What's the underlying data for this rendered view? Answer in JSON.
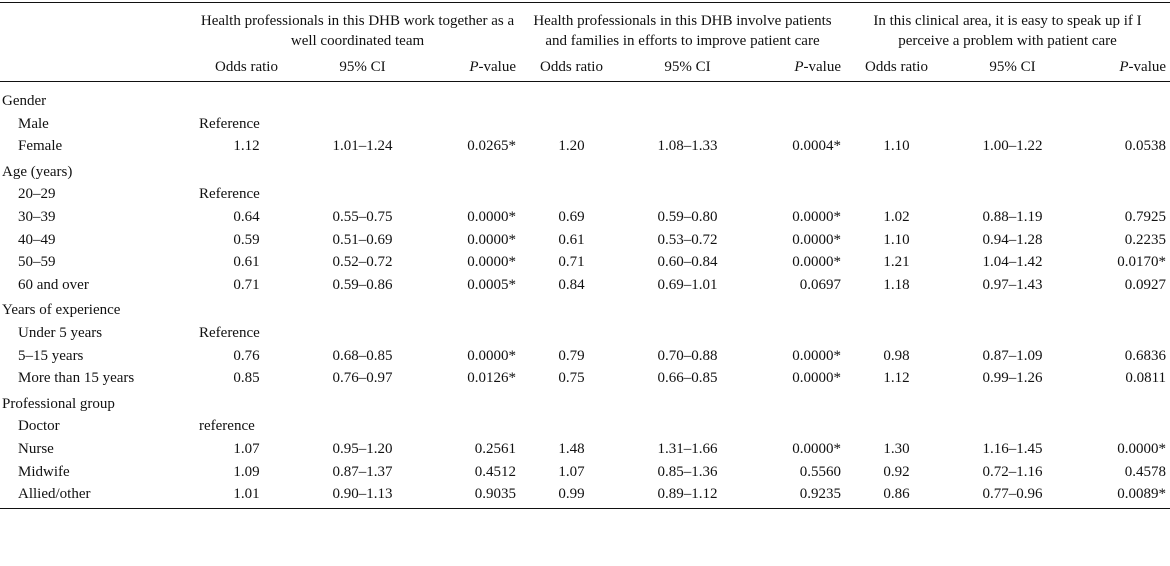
{
  "group_headers": [
    "Health professionals in this DHB work together as a well coordinated team",
    "Health professionals in this DHB involve patients and families in efforts to improve patient care",
    "In this clinical area, it is easy to speak up if I perceive a problem with patient care"
  ],
  "sub_headers": {
    "odds_ratio": "Odds ratio",
    "ci": "95% CI",
    "p_italic": "P",
    "p_rest": "-value"
  },
  "sections": [
    {
      "title": "Gender",
      "rows": [
        {
          "label": "Male",
          "ref": "Reference"
        },
        {
          "label": "Female",
          "v": [
            "1.12",
            "1.01–1.24",
            "0.0265*",
            "1.20",
            "1.08–1.33",
            "0.0004*",
            "1.10",
            "1.00–1.22",
            "0.0538"
          ]
        }
      ]
    },
    {
      "title": "Age (years)",
      "rows": [
        {
          "label": "20–29",
          "ref": "Reference"
        },
        {
          "label": "30–39",
          "v": [
            "0.64",
            "0.55–0.75",
            "0.0000*",
            "0.69",
            "0.59–0.80",
            "0.0000*",
            "1.02",
            "0.88–1.19",
            "0.7925"
          ]
        },
        {
          "label": "40–49",
          "v": [
            "0.59",
            "0.51–0.69",
            "0.0000*",
            "0.61",
            "0.53–0.72",
            "0.0000*",
            "1.10",
            "0.94–1.28",
            "0.2235"
          ]
        },
        {
          "label": "50–59",
          "v": [
            "0.61",
            "0.52–0.72",
            "0.0000*",
            "0.71",
            "0.60–0.84",
            "0.0000*",
            "1.21",
            "1.04–1.42",
            "0.0170*"
          ]
        },
        {
          "label": "60 and over",
          "v": [
            "0.71",
            "0.59–0.86",
            "0.0005*",
            "0.84",
            "0.69–1.01",
            "0.0697",
            "1.18",
            "0.97–1.43",
            "0.0927"
          ]
        }
      ]
    },
    {
      "title": "Years of experience",
      "rows": [
        {
          "label": "Under 5 years",
          "ref": "Reference"
        },
        {
          "label": "5–15 years",
          "v": [
            "0.76",
            "0.68–0.85",
            "0.0000*",
            "0.79",
            "0.70–0.88",
            "0.0000*",
            "0.98",
            "0.87–1.09",
            "0.6836"
          ]
        },
        {
          "label": "More than 15 years",
          "v": [
            "0.85",
            "0.76–0.97",
            "0.0126*",
            "0.75",
            "0.66–0.85",
            "0.0000*",
            "1.12",
            "0.99–1.26",
            "0.0811"
          ]
        }
      ]
    },
    {
      "title": "Professional group",
      "rows": [
        {
          "label": "Doctor",
          "ref": "reference"
        },
        {
          "label": "Nurse",
          "v": [
            "1.07",
            "0.95–1.20",
            "0.2561",
            "1.48",
            "1.31–1.66",
            "0.0000*",
            "1.30",
            "1.16–1.45",
            "0.0000*"
          ]
        },
        {
          "label": "Midwife",
          "v": [
            "1.09",
            "0.87–1.37",
            "0.4512",
            "1.07",
            "0.85–1.36",
            "0.5560",
            "0.92",
            "0.72–1.16",
            "0.4578"
          ]
        },
        {
          "label": "Allied/other",
          "v": [
            "1.01",
            "0.90–1.13",
            "0.9035",
            "0.99",
            "0.89–1.12",
            "0.9235",
            "0.86",
            "0.77–0.96",
            "0.0089*"
          ]
        }
      ]
    }
  ]
}
